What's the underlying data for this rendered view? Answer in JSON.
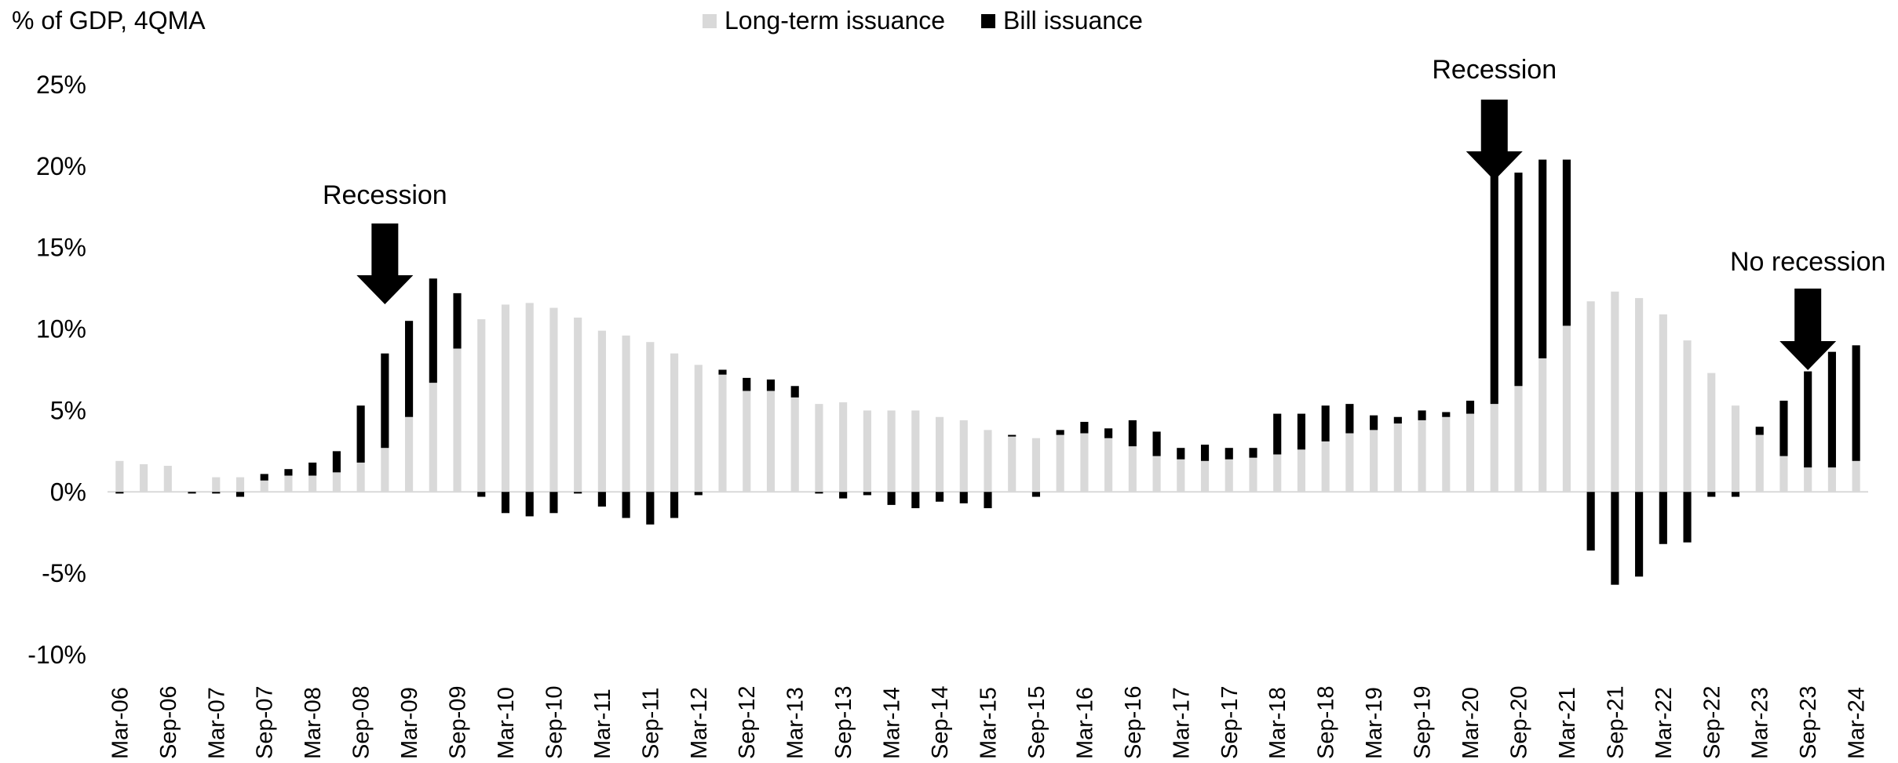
{
  "chart_data": {
    "type": "bar",
    "stacked": true,
    "ylabel": "% of GDP, 4QMA",
    "ylim": [
      -10,
      25
    ],
    "yticks": [
      -10,
      -5,
      0,
      5,
      10,
      15,
      20,
      25
    ],
    "ytick_labels": [
      "-10%",
      "-5%",
      "0%",
      "5%",
      "10%",
      "15%",
      "20%",
      "25%"
    ],
    "legend_position": "top-center",
    "categories": [
      "Mar-06",
      "Jun-06",
      "Sep-06",
      "Dec-06",
      "Mar-07",
      "Jun-07",
      "Sep-07",
      "Dec-07",
      "Mar-08",
      "Jun-08",
      "Sep-08",
      "Dec-08",
      "Mar-09",
      "Jun-09",
      "Sep-09",
      "Dec-09",
      "Mar-10",
      "Jun-10",
      "Sep-10",
      "Dec-10",
      "Mar-11",
      "Jun-11",
      "Sep-11",
      "Dec-11",
      "Mar-12",
      "Jun-12",
      "Sep-12",
      "Dec-12",
      "Mar-13",
      "Jun-13",
      "Sep-13",
      "Dec-13",
      "Mar-14",
      "Jun-14",
      "Sep-14",
      "Dec-14",
      "Mar-15",
      "Jun-15",
      "Sep-15",
      "Dec-15",
      "Mar-16",
      "Jun-16",
      "Sep-16",
      "Dec-16",
      "Mar-17",
      "Jun-17",
      "Sep-17",
      "Dec-17",
      "Mar-18",
      "Jun-18",
      "Sep-18",
      "Dec-18",
      "Mar-19",
      "Jun-19",
      "Sep-19",
      "Dec-19",
      "Mar-20",
      "Jun-20",
      "Sep-20",
      "Dec-20",
      "Mar-21",
      "Jun-21",
      "Sep-21",
      "Dec-21",
      "Mar-22",
      "Jun-22",
      "Sep-22",
      "Dec-22",
      "Mar-23",
      "Jun-23",
      "Sep-23",
      "Dec-23",
      "Mar-24"
    ],
    "tick_labels": [
      "Mar-06",
      "Sep-06",
      "Mar-07",
      "Sep-07",
      "Mar-08",
      "Sep-08",
      "Mar-09",
      "Sep-09",
      "Mar-10",
      "Sep-10",
      "Mar-11",
      "Sep-11",
      "Mar-12",
      "Sep-12",
      "Mar-13",
      "Sep-13",
      "Mar-14",
      "Sep-14",
      "Mar-15",
      "Sep-15",
      "Mar-16",
      "Sep-16",
      "Mar-17",
      "Sep-17",
      "Mar-18",
      "Sep-18",
      "Mar-19",
      "Sep-19",
      "Mar-20",
      "Sep-20",
      "Mar-21",
      "Sep-21",
      "Mar-22",
      "Sep-22",
      "Mar-23",
      "Sep-23",
      "Mar-24"
    ],
    "series": [
      {
        "name": "Long-term issuance",
        "color": "#d9d9d9",
        "values": [
          1.9,
          1.7,
          1.6,
          0.0,
          0.9,
          0.9,
          0.7,
          1.0,
          1.0,
          1.2,
          1.8,
          2.7,
          4.6,
          6.7,
          8.8,
          10.6,
          11.5,
          11.6,
          11.3,
          10.7,
          9.9,
          9.6,
          9.2,
          8.5,
          7.8,
          7.2,
          6.2,
          6.2,
          5.8,
          5.4,
          5.5,
          5.0,
          5.0,
          5.0,
          4.6,
          4.4,
          3.8,
          3.4,
          3.3,
          3.5,
          3.6,
          3.3,
          2.8,
          2.2,
          2.0,
          1.9,
          2.0,
          2.1,
          2.3,
          2.6,
          3.1,
          3.6,
          3.8,
          4.2,
          4.4,
          4.6,
          4.8,
          5.4,
          6.5,
          8.2,
          10.2,
          11.7,
          12.3,
          11.9,
          10.9,
          9.3,
          7.3,
          5.3,
          3.5,
          2.2,
          1.5,
          1.5,
          1.9
        ]
      },
      {
        "name": "Bill issuance",
        "color": "#000000",
        "values": [
          -0.1,
          0.0,
          0.0,
          -0.1,
          -0.1,
          -0.3,
          0.4,
          0.4,
          0.8,
          1.3,
          3.5,
          5.8,
          5.9,
          6.4,
          3.4,
          -0.3,
          -1.3,
          -1.5,
          -1.3,
          -0.1,
          -0.9,
          -1.6,
          -2.0,
          -1.6,
          -0.2,
          0.3,
          0.8,
          0.7,
          0.7,
          -0.1,
          -0.4,
          -0.2,
          -0.8,
          -1.0,
          -0.6,
          -0.7,
          -1.0,
          0.1,
          -0.3,
          0.3,
          0.7,
          0.6,
          1.6,
          1.5,
          0.7,
          1.0,
          0.7,
          0.6,
          2.5,
          2.2,
          2.2,
          1.8,
          0.9,
          0.4,
          0.6,
          0.3,
          0.8,
          14.0,
          13.1,
          12.2,
          10.2,
          -3.6,
          -5.7,
          -5.2,
          -3.2,
          -3.1,
          -0.3,
          -0.3,
          0.5,
          3.4,
          5.9,
          7.1,
          7.1
        ]
      }
    ],
    "annotations": [
      {
        "text": "Recession",
        "category": "Dec-08"
      },
      {
        "text": "Recession",
        "category": "Jun-20"
      },
      {
        "text": "No recession",
        "category": "Sep-23"
      }
    ]
  }
}
